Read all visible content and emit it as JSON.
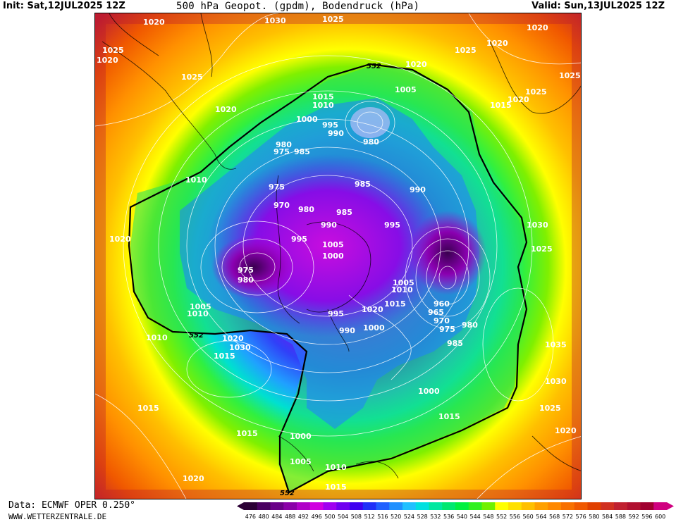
{
  "header": {
    "init": "Init: Sat,12JUL2025 12Z",
    "title": "500 hPa Geopot. (gpdm), Bodendruck (hPa)",
    "valid": "Valid: Sun,13JUL2025 12Z"
  },
  "footer": {
    "data_source": "Data: ECMWF OPER 0.250°",
    "website": "WWW.WETTERZENTRALE.DE"
  },
  "contour_label": "552",
  "pressure_labels": [
    "1020",
    "1030",
    "1025",
    "1025",
    "1020",
    "1025",
    "1020",
    "1025",
    "1020",
    "1025",
    "1020",
    "1025",
    "1020",
    "1015",
    "1020",
    "1010",
    "1015",
    "1010",
    "1005",
    "1000",
    "995",
    "990",
    "980",
    "985",
    "975",
    "980",
    "975",
    "970",
    "985",
    "980",
    "990",
    "995",
    "1005",
    "1000",
    "995",
    "990",
    "985",
    "980",
    "975",
    "1030",
    "1025",
    "1035",
    "1030",
    "1025",
    "1020",
    "1015",
    "1010",
    "1005",
    "1000",
    "995",
    "990",
    "985",
    "980",
    "975",
    "970",
    "965",
    "960",
    "1020",
    "1015",
    "1010",
    "1005",
    "1000",
    "1015",
    "1020",
    "1030",
    "1010",
    "1015",
    "1020",
    "1015",
    "1000",
    "1005",
    "1010",
    "1015",
    "1020"
  ],
  "colorbar": {
    "ticks": [
      "476",
      "480",
      "484",
      "488",
      "492",
      "496",
      "500",
      "504",
      "508",
      "512",
      "516",
      "520",
      "524",
      "528",
      "532",
      "536",
      "540",
      "544",
      "548",
      "552",
      "556",
      "560",
      "564",
      "568",
      "572",
      "576",
      "580",
      "584",
      "588",
      "592",
      "596",
      "600"
    ],
    "colors": [
      "#2b0035",
      "#4a0060",
      "#6a0088",
      "#8a00a8",
      "#b000c8",
      "#d000e0",
      "#a000f0",
      "#7000f0",
      "#4000f0",
      "#2030f8",
      "#2060ff",
      "#2090ff",
      "#20c0ff",
      "#00e0e0",
      "#00e8a0",
      "#00e870",
      "#00f040",
      "#30f020",
      "#70f000",
      "#ffff00",
      "#ffe000",
      "#ffc000",
      "#ffa000",
      "#ff8800",
      "#f87000",
      "#f05800",
      "#e04000",
      "#d03020",
      "#c02030",
      "#b01030",
      "#a00030",
      "#d00080"
    ]
  }
}
